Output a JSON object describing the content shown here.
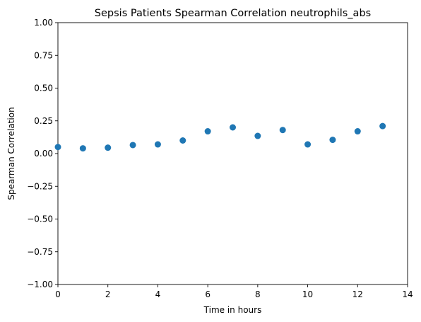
{
  "chart_data": {
    "type": "scatter",
    "title": "Sepsis Patients Spearman Correlation neutrophils_abs",
    "xlabel": "Time in hours",
    "ylabel": "Spearman Correlation",
    "xlim": [
      0,
      14
    ],
    "ylim": [
      -1.0,
      1.0
    ],
    "x_ticks": [
      0,
      2,
      4,
      6,
      8,
      10,
      12,
      14
    ],
    "y_ticks": [
      -1.0,
      -0.75,
      -0.5,
      -0.25,
      0.0,
      0.25,
      0.5,
      0.75,
      1.0
    ],
    "x_tick_labels": [
      "0",
      "2",
      "4",
      "6",
      "8",
      "10",
      "12",
      "14"
    ],
    "y_tick_labels": [
      "−1.00",
      "−0.75",
      "−0.50",
      "−0.25",
      "0.00",
      "0.25",
      "0.50",
      "0.75",
      "1.00"
    ],
    "grid": false,
    "marker_color": "#1f77b4",
    "series": [
      {
        "x": [
          0,
          1,
          2,
          3,
          4,
          5,
          6,
          7,
          8,
          9,
          10,
          11,
          12,
          13
        ],
        "y": [
          0.05,
          0.04,
          0.045,
          0.065,
          0.07,
          0.1,
          0.17,
          0.2,
          0.135,
          0.18,
          0.07,
          0.105,
          0.17,
          0.21
        ]
      }
    ]
  }
}
